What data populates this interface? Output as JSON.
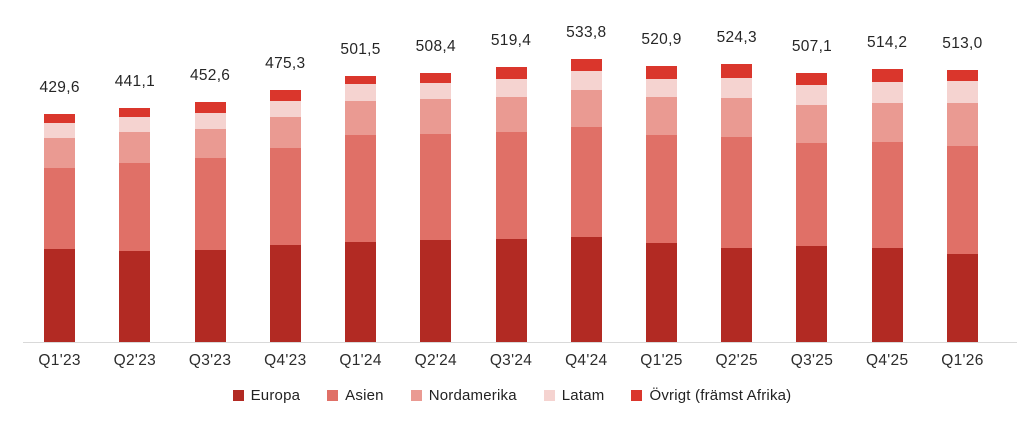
{
  "chart_data": {
    "type": "bar",
    "stacked": true,
    "title": "",
    "xlabel": "",
    "ylabel": "",
    "grid": false,
    "legend_position": "bottom",
    "decimal_separator": "comma",
    "categories": [
      "Q1'23",
      "Q2'23",
      "Q3'23",
      "Q4'23",
      "Q1'24",
      "Q2'24",
      "Q3'24",
      "Q4'24",
      "Q1'25",
      "Q2'25",
      "Q3'25",
      "Q4'25",
      "Q1'26"
    ],
    "series": [
      {
        "name": "Europa",
        "color": "#b22a23",
        "values": [
          174.6,
          172.0,
          173.5,
          184.0,
          189.2,
          193.0,
          193.8,
          198.8,
          186.6,
          177.4,
          180.3,
          176.7,
          167.0
        ]
      },
      {
        "name": "Asien",
        "color": "#e07067",
        "values": [
          153.2,
          165.5,
          173.5,
          181.2,
          201.1,
          199.8,
          203.0,
          206.2,
          203.6,
          208.7,
          194.8,
          201.0,
          202.8
        ]
      },
      {
        "name": "Nordamerika",
        "color": "#ea9a92",
        "values": [
          57.7,
          57.9,
          55.4,
          58.4,
          64.7,
          65.4,
          64.7,
          70.3,
          72.2,
          74.1,
          71.1,
          73.5,
          81.8
        ]
      },
      {
        "name": "Latam",
        "color": "#f5d3d0",
        "values": [
          27.1,
          28.7,
          30.2,
          31.5,
          30.9,
          31.3,
          34.7,
          36.4,
          33.4,
          37.7,
          37.7,
          39.6,
          40.7
        ]
      },
      {
        "name": "Övrigt (främst Afrika)",
        "color": "#da362c",
        "values": [
          17.0,
          17.0,
          20.0,
          20.2,
          15.6,
          18.9,
          23.2,
          22.1,
          25.1,
          26.4,
          23.2,
          23.4,
          20.7
        ]
      }
    ],
    "totals": [
      429.6,
      441.1,
      452.6,
      475.3,
      501.5,
      508.4,
      519.4,
      533.8,
      520.9,
      524.3,
      507.1,
      514.2,
      513.0
    ],
    "total_labels": [
      "429,6",
      "441,1",
      "452,6",
      "475,3",
      "501,5",
      "508,4",
      "519,4",
      "533,8",
      "520,9",
      "524,3",
      "507,1",
      "514,2",
      "513,0"
    ]
  },
  "colors": {
    "background": "#ffffff",
    "axis_line": "#d9d9d9",
    "value_label_text": "#262626",
    "axis_label_text": "#2d2d2d",
    "legend_text": "#222222"
  }
}
